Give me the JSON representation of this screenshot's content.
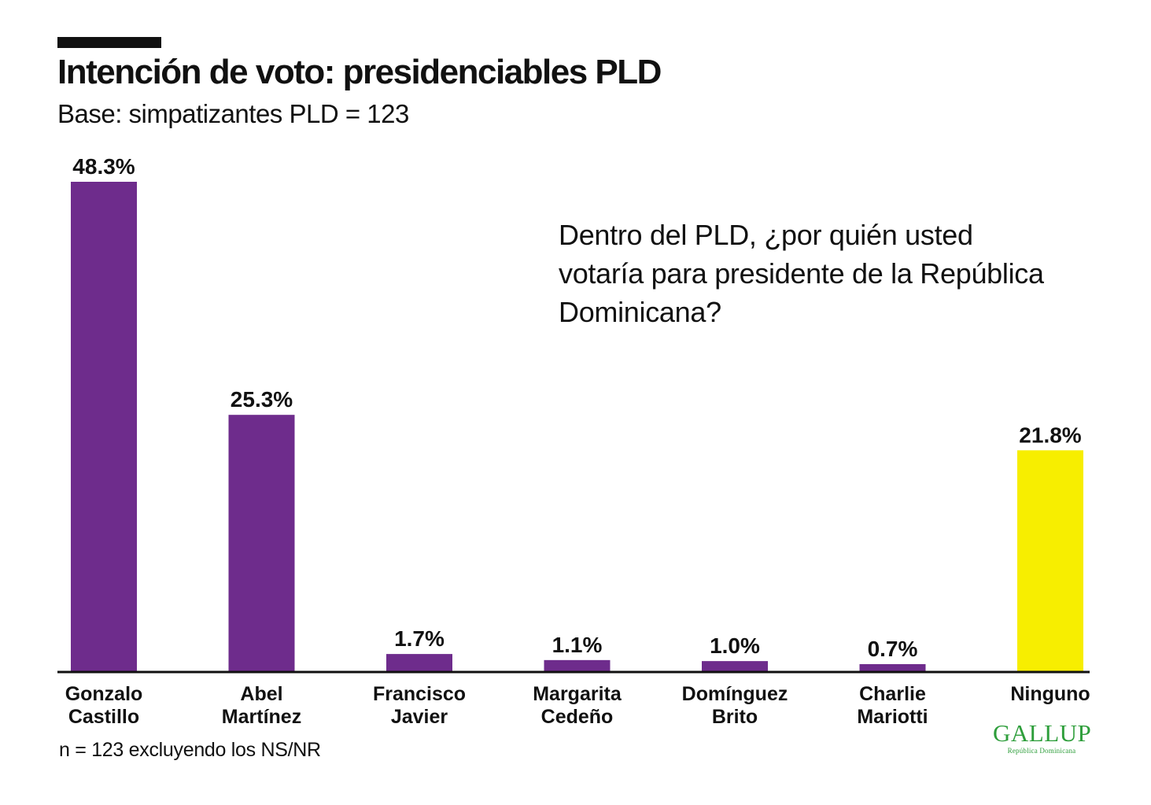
{
  "header": {
    "title": "Intención de voto: presidenciables PLD",
    "subtitle": "Base: simpatizantes PLD = 123"
  },
  "question": "Dentro del PLD, ¿por quién usted votaría para presidente de la República Dominicana?",
  "footnote": "n = 123 excluyendo los NS/NR",
  "logo": {
    "name": "GALLUP",
    "subtitle": "República Dominicana"
  },
  "colors": {
    "text": "#111111",
    "candidate_bar": "#6e2c8c",
    "ninguno_bar": "#f7ee00",
    "logo": "#2e9e3b"
  },
  "chart_data": {
    "type": "bar",
    "title": "Intención de voto: presidenciables PLD",
    "subtitle": "Base: simpatizantes PLD = 123",
    "xlabel": "",
    "ylabel": "",
    "ylim": [
      0,
      48.3
    ],
    "grid": false,
    "categories": [
      [
        "Gonzalo",
        "Castillo"
      ],
      [
        "Abel",
        "Martínez"
      ],
      [
        "Francisco",
        "Javier"
      ],
      [
        "Margarita",
        "Cedeño"
      ],
      [
        "Domínguez",
        "Brito"
      ],
      [
        "Charlie",
        "Mariotti"
      ],
      [
        "Ninguno"
      ]
    ],
    "values": [
      48.3,
      25.3,
      1.7,
      1.1,
      1.0,
      0.7,
      21.8
    ],
    "data_labels": [
      "48.3%",
      "25.3%",
      "1.7%",
      "1.1%",
      "1.0%",
      "0.7%",
      "21.8%"
    ],
    "bar_colors": [
      "#6e2c8c",
      "#6e2c8c",
      "#6e2c8c",
      "#6e2c8c",
      "#6e2c8c",
      "#6e2c8c",
      "#f7ee00"
    ]
  }
}
